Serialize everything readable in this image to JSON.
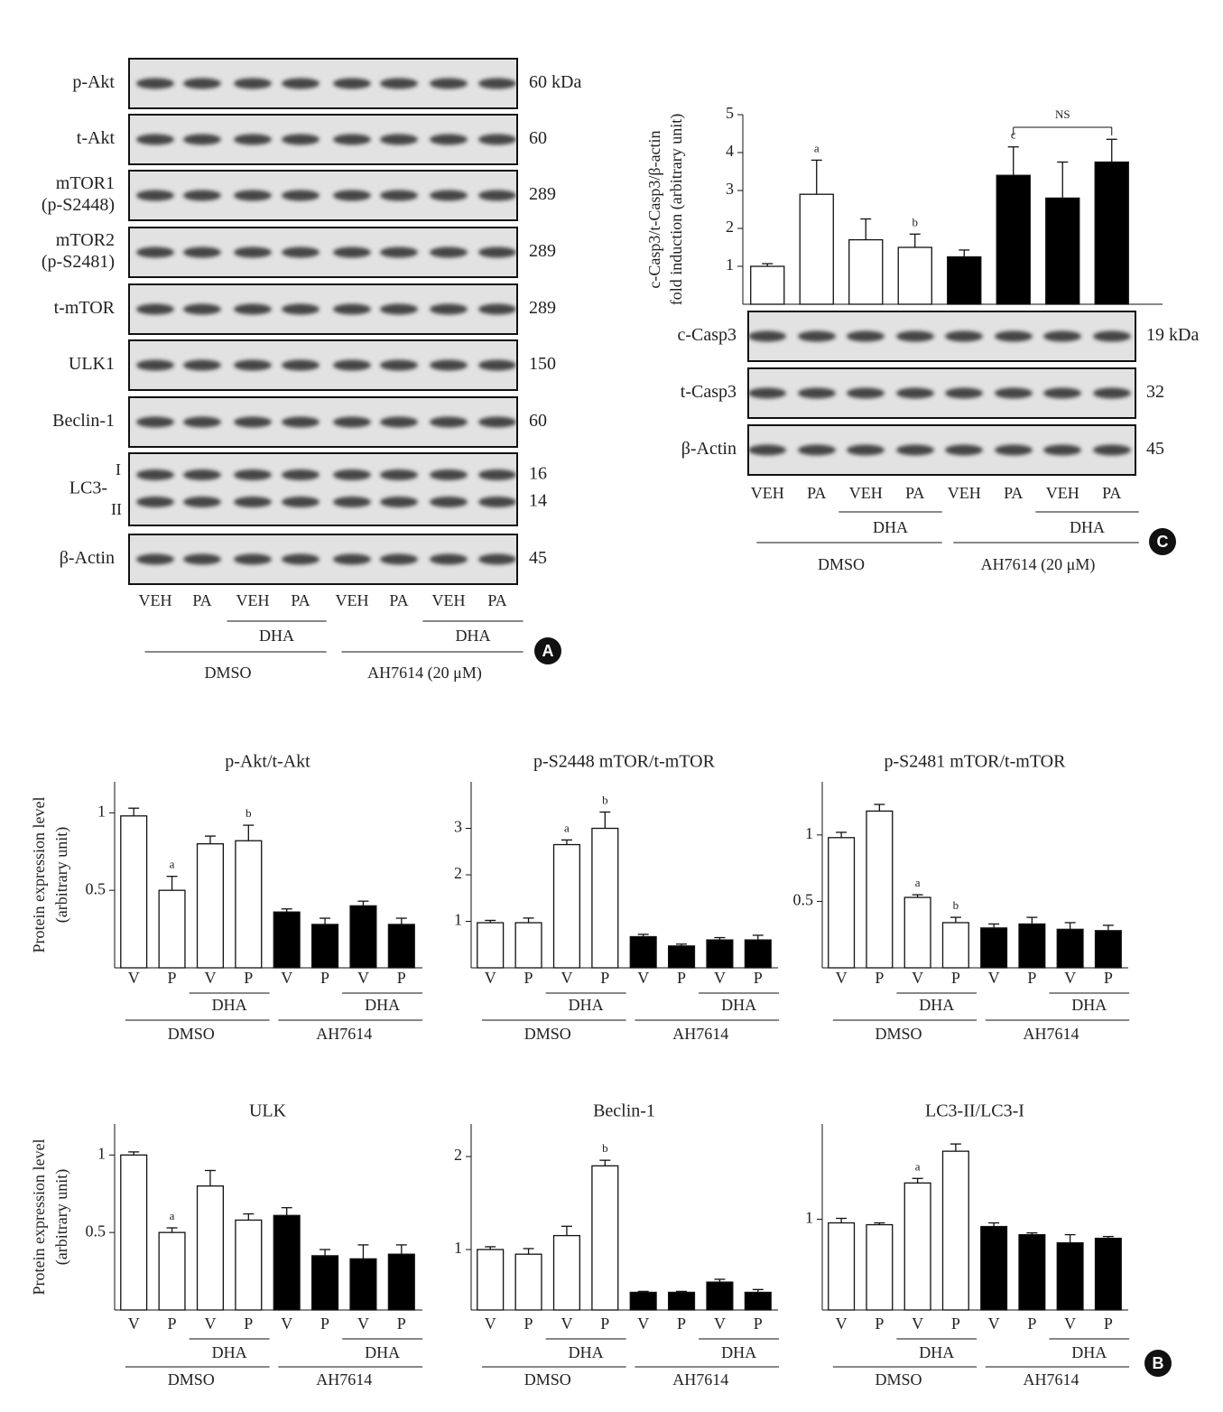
{
  "panel_a": {
    "letter": "A",
    "blots": [
      {
        "label": [
          "p-Akt"
        ],
        "size": [
          "60 kDa"
        ]
      },
      {
        "label": [
          "t-Akt"
        ],
        "size": [
          "60"
        ]
      },
      {
        "label": [
          "mTOR1",
          "(p-S2448)"
        ],
        "size": [
          "289"
        ]
      },
      {
        "label": [
          "mTOR2",
          "(p-S2481)"
        ],
        "size": [
          "289"
        ]
      },
      {
        "label": [
          "t-mTOR"
        ],
        "size": [
          "289"
        ]
      },
      {
        "label": [
          "ULK1"
        ],
        "size": [
          "150"
        ]
      },
      {
        "label": [
          "Beclin-1"
        ],
        "size": [
          "60"
        ]
      },
      {
        "label": [
          "LC3-"
        ],
        "bands": [
          "I",
          "II"
        ],
        "size": [
          "16",
          "14"
        ]
      },
      {
        "label": [
          "β-Actin"
        ],
        "size": [
          "45"
        ]
      }
    ],
    "lanes": [
      "VEH",
      "PA",
      "VEH",
      "PA",
      "VEH",
      "PA",
      "VEH",
      "PA"
    ],
    "subgroups": [
      "DHA",
      "DHA"
    ],
    "groups": [
      "DMSO",
      "AH7614 (20 μM)"
    ]
  },
  "panel_b": {
    "letter": "B"
  },
  "panel_c": {
    "letter": "C",
    "blots": [
      {
        "label": [
          "c-Casp3"
        ],
        "size": [
          "19 kDa"
        ]
      },
      {
        "label": [
          "t-Casp3"
        ],
        "size": [
          "32"
        ]
      },
      {
        "label": [
          "β-Actin"
        ],
        "size": [
          "45"
        ]
      }
    ]
  },
  "chart_data": [
    {
      "type": "bar",
      "ylabel": [
        "c-Casp3/t-Casp3/β-actin",
        "fold induction (arbitrary unit)"
      ],
      "categories": [
        "VEH",
        "PA",
        "VEH",
        "PA",
        "VEH",
        "PA",
        "VEH",
        "PA"
      ],
      "subgroups": [
        "DHA",
        "DHA"
      ],
      "groups": [
        "DMSO",
        "AH7614 (20 μM)"
      ],
      "values": [
        1.0,
        2.9,
        1.7,
        1.5,
        1.25,
        3.4,
        2.8,
        3.75
      ],
      "errors": [
        0.07,
        0.9,
        0.55,
        0.35,
        0.18,
        0.75,
        0.95,
        0.6
      ],
      "colors": [
        "#ffffff",
        "#ffffff",
        "#ffffff",
        "#ffffff",
        "#000000",
        "#000000",
        "#000000",
        "#000000"
      ],
      "annotations": [
        null,
        "a",
        null,
        "b",
        null,
        "c",
        null,
        null
      ],
      "bracket": {
        "text": "NS",
        "categories": [
          5,
          7
        ]
      },
      "ylim": [
        0,
        5
      ],
      "yticks": [
        1,
        2,
        3,
        4,
        5
      ]
    },
    {
      "type": "bar",
      "title": "p-Akt/t-Akt",
      "ylabel": [
        "Protein expression level",
        "(arbitrary unit)"
      ],
      "categories": [
        "V",
        "P",
        "V",
        "P",
        "V",
        "P",
        "V",
        "P"
      ],
      "subgroups": [
        "DHA",
        "DHA"
      ],
      "groups": [
        "DMSO",
        "AH7614"
      ],
      "values": [
        0.98,
        0.5,
        0.8,
        0.82,
        0.36,
        0.28,
        0.4,
        0.28
      ],
      "errors": [
        0.05,
        0.09,
        0.05,
        0.1,
        0.02,
        0.04,
        0.03,
        0.04
      ],
      "colors": [
        "#ffffff",
        "#ffffff",
        "#ffffff",
        "#ffffff",
        "#000000",
        "#000000",
        "#000000",
        "#000000"
      ],
      "annotations": [
        null,
        "a",
        null,
        "b",
        null,
        null,
        null,
        null
      ],
      "ylim": [
        0,
        1.2
      ],
      "yticks": [
        0.5,
        1
      ]
    },
    {
      "type": "bar",
      "title": "p-S2448 mTOR/t-mTOR",
      "categories": [
        "V",
        "P",
        "V",
        "P",
        "V",
        "P",
        "V",
        "P"
      ],
      "subgroups": [
        "DHA",
        "DHA"
      ],
      "groups": [
        "DMSO",
        "AH7614"
      ],
      "values": [
        0.97,
        0.97,
        2.65,
        3.0,
        0.67,
        0.47,
        0.6,
        0.6
      ],
      "errors": [
        0.05,
        0.1,
        0.1,
        0.35,
        0.05,
        0.04,
        0.05,
        0.1
      ],
      "colors": [
        "#ffffff",
        "#ffffff",
        "#ffffff",
        "#ffffff",
        "#000000",
        "#000000",
        "#000000",
        "#000000"
      ],
      "annotations": [
        null,
        null,
        "a",
        "b",
        null,
        null,
        null,
        null
      ],
      "ylim": [
        0,
        4
      ],
      "yticks": [
        1,
        2,
        3
      ]
    },
    {
      "type": "bar",
      "title": "p-S2481 mTOR/t-mTOR",
      "categories": [
        "V",
        "P",
        "V",
        "P",
        "V",
        "P",
        "V",
        "P"
      ],
      "subgroups": [
        "DHA",
        "DHA"
      ],
      "groups": [
        "DMSO",
        "AH7614"
      ],
      "values": [
        0.98,
        1.18,
        0.53,
        0.34,
        0.3,
        0.33,
        0.29,
        0.28
      ],
      "errors": [
        0.04,
        0.05,
        0.02,
        0.04,
        0.03,
        0.05,
        0.05,
        0.04
      ],
      "colors": [
        "#ffffff",
        "#ffffff",
        "#ffffff",
        "#ffffff",
        "#000000",
        "#000000",
        "#000000",
        "#000000"
      ],
      "annotations": [
        null,
        null,
        "a",
        "b",
        null,
        null,
        null,
        null
      ],
      "ylim": [
        0,
        1.4
      ],
      "yticks": [
        0.5,
        1
      ]
    },
    {
      "type": "bar",
      "title": "ULK",
      "ylabel": [
        "Protein expression level",
        "(arbitrary unit)"
      ],
      "categories": [
        "V",
        "P",
        "V",
        "P",
        "V",
        "P",
        "V",
        "P"
      ],
      "subgroups": [
        "DHA",
        "DHA"
      ],
      "groups": [
        "DMSO",
        "AH7614"
      ],
      "values": [
        1.0,
        0.5,
        0.8,
        0.58,
        0.61,
        0.35,
        0.33,
        0.36
      ],
      "errors": [
        0.02,
        0.03,
        0.1,
        0.04,
        0.05,
        0.04,
        0.09,
        0.06
      ],
      "colors": [
        "#ffffff",
        "#ffffff",
        "#ffffff",
        "#ffffff",
        "#000000",
        "#000000",
        "#000000",
        "#000000"
      ],
      "annotations": [
        null,
        "a",
        null,
        null,
        null,
        null,
        null,
        null
      ],
      "ylim": [
        0,
        1.2
      ],
      "yticks": [
        0.5,
        1
      ]
    },
    {
      "type": "bar",
      "title": "Beclin-1",
      "categories": [
        "V",
        "P",
        "V",
        "P",
        "V",
        "P",
        "V",
        "P"
      ],
      "subgroups": [
        "DHA",
        "DHA"
      ],
      "groups": [
        "DMSO",
        "AH7614"
      ],
      "values": [
        1.0,
        0.95,
        1.15,
        1.9,
        0.54,
        0.54,
        0.65,
        0.54
      ],
      "errors": [
        0.03,
        0.06,
        0.1,
        0.06,
        0.01,
        0.01,
        0.03,
        0.03
      ],
      "colors": [
        "#ffffff",
        "#ffffff",
        "#ffffff",
        "#ffffff",
        "#000000",
        "#000000",
        "#000000",
        "#000000"
      ],
      "annotations": [
        null,
        null,
        null,
        "b",
        null,
        null,
        null,
        null
      ],
      "ylim": [
        0.35,
        2.35
      ],
      "yticks": [
        1,
        2
      ]
    },
    {
      "type": "bar",
      "title": "LC3-II/LC3-I",
      "categories": [
        "V",
        "P",
        "V",
        "P",
        "V",
        "P",
        "V",
        "P"
      ],
      "subgroups": [
        "DHA",
        "DHA"
      ],
      "groups": [
        "DMSO",
        "AH7614"
      ],
      "values": [
        0.96,
        0.94,
        1.4,
        1.75,
        0.92,
        0.83,
        0.74,
        0.79
      ],
      "errors": [
        0.05,
        0.02,
        0.05,
        0.08,
        0.04,
        0.02,
        0.09,
        0.02
      ],
      "colors": [
        "#ffffff",
        "#ffffff",
        "#ffffff",
        "#ffffff",
        "#000000",
        "#000000",
        "#000000",
        "#000000"
      ],
      "annotations": [
        null,
        null,
        "a",
        null,
        null,
        null,
        null,
        null
      ],
      "ylim": [
        0,
        2.05
      ],
      "yticks": [
        1
      ]
    }
  ]
}
